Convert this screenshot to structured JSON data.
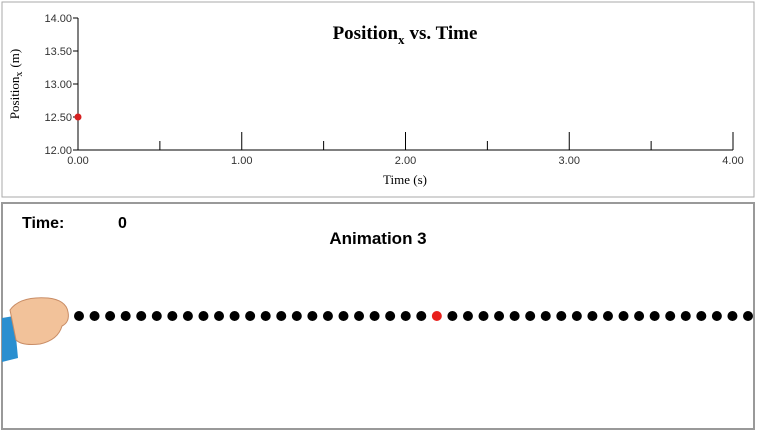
{
  "chart_data": {
    "type": "scatter",
    "title": {
      "text": "Position",
      "subscript": "x",
      "rest": "vs. Time"
    },
    "y_label": {
      "text": "Position",
      "subscript": "x",
      "rest": "(m)"
    },
    "x_label": "Time (s)",
    "x": [
      0
    ],
    "values": [
      12.5
    ],
    "color": "#d62020",
    "xlim": [
      0,
      4
    ],
    "xticks": [
      {
        "value": 0,
        "label": "0.00"
      },
      {
        "value": 1,
        "label": "1.00"
      },
      {
        "value": 2,
        "label": "2.00"
      },
      {
        "value": 3,
        "label": "3.00"
      },
      {
        "value": 4,
        "label": "4.00"
      }
    ],
    "xminor_ticks": [
      0.5,
      1.5,
      2.5,
      3.5
    ],
    "ylim": [
      12,
      14
    ],
    "yticks": [
      {
        "value": 12,
        "label": "12.00"
      },
      {
        "value": 12.5,
        "label": "12.50"
      },
      {
        "value": 13,
        "label": "13.00"
      },
      {
        "value": 13.5,
        "label": "13.50"
      },
      {
        "value": 14,
        "label": "14.00"
      }
    ]
  },
  "animation": {
    "time_label": "Time:",
    "time_value": 0,
    "title": "Animation 3",
    "dot_count": 44,
    "highlight_index": 23,
    "dot_color": "#000000",
    "highlight_color": "#e8201c"
  }
}
